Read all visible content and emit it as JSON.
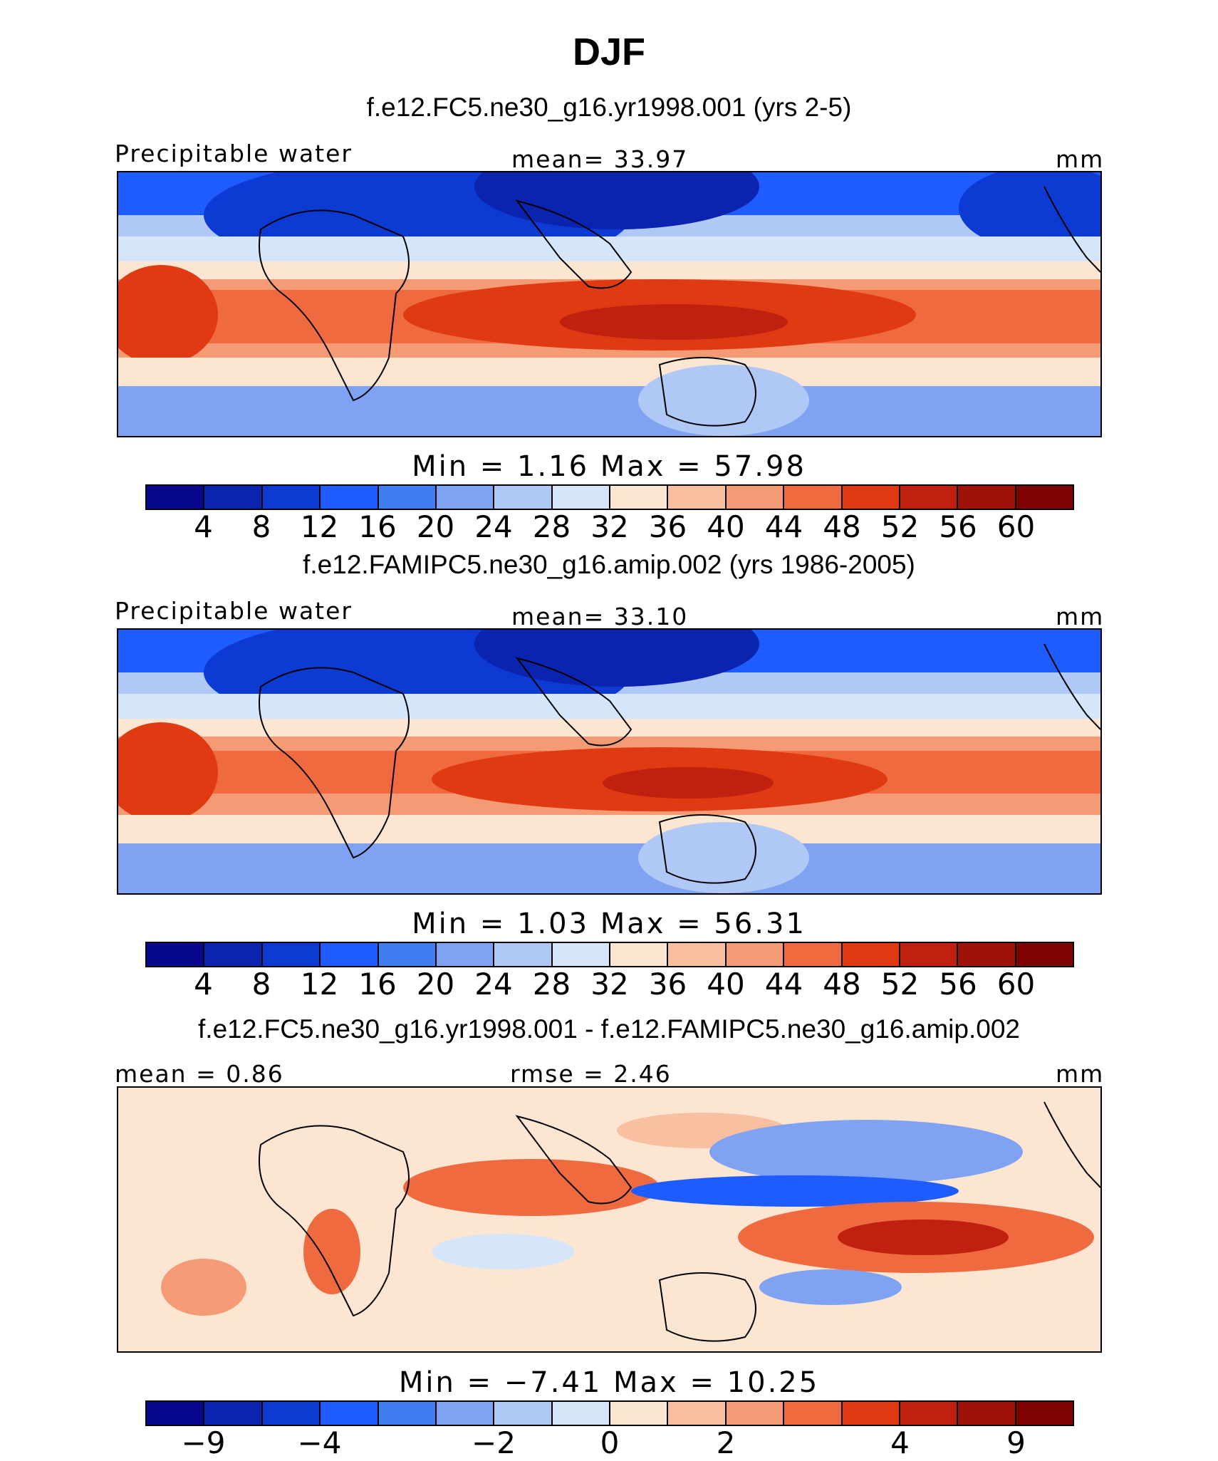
{
  "title": "DJF",
  "panels": [
    {
      "case": "f.e12.FC5.ne30_g16.yr1998.001 (yrs 2-5)",
      "left_label": "Precipitable water",
      "center_label": "mean=  33.97",
      "units": "mm",
      "stats": "Min =   1.16 Max =  57.98",
      "colorbar": {
        "colors": [
          "#08088c",
          "#0a24b0",
          "#0c3ad2",
          "#1f5cff",
          "#3f7ef0",
          "#7fa2f2",
          "#b0c8f5",
          "#d6e6fa",
          "#fce6d2",
          "#f8bfa0",
          "#f49a74",
          "#f06a40",
          "#e03a12",
          "#c02010",
          "#a01208",
          "#7e0404"
        ],
        "ticks": [
          "4",
          "8",
          "12",
          "16",
          "20",
          "24",
          "28",
          "32",
          "36",
          "40",
          "44",
          "48",
          "52",
          "56",
          "60"
        ]
      }
    },
    {
      "case": "f.e12.FAMIPC5.ne30_g16.amip.002 (yrs 1986-2005)",
      "left_label": "Precipitable water",
      "center_label": "mean=  33.10",
      "units": "mm",
      "stats": "Min =   1.03 Max =  56.31",
      "colorbar": {
        "colors": [
          "#08088c",
          "#0a24b0",
          "#0c3ad2",
          "#1f5cff",
          "#3f7ef0",
          "#7fa2f2",
          "#b0c8f5",
          "#d6e6fa",
          "#fce6d2",
          "#f8bfa0",
          "#f49a74",
          "#f06a40",
          "#e03a12",
          "#c02010",
          "#a01208",
          "#7e0404"
        ],
        "ticks": [
          "4",
          "8",
          "12",
          "16",
          "20",
          "24",
          "28",
          "32",
          "36",
          "40",
          "44",
          "48",
          "52",
          "56",
          "60"
        ]
      }
    },
    {
      "case": "f.e12.FC5.ne30_g16.yr1998.001 - f.e12.FAMIPC5.ne30_g16.amip.002",
      "left_label": "mean =  0.86",
      "center_label": "rmse =  2.46",
      "units": "mm",
      "stats": "Min =  −7.41 Max =  10.25",
      "colorbar": {
        "colors": [
          "#08088c",
          "#0a24b0",
          "#0c3ad2",
          "#1f5cff",
          "#3f7ef0",
          "#7fa2f2",
          "#b0c8f5",
          "#d6e6fa",
          "#fce6d2",
          "#f8bfa0",
          "#f49a74",
          "#f06a40",
          "#e03a12",
          "#c02010",
          "#a01208",
          "#7e0404"
        ],
        "ticks": [
          "−9",
          "−4",
          "−2",
          "0",
          "2",
          "4",
          "9"
        ]
      }
    }
  ],
  "chart_data": {
    "type": "heatmap",
    "title": "DJF",
    "variable": "Precipitable water",
    "units": "mm",
    "maps": [
      {
        "case": "f.e12.FC5.ne30_g16.yr1998.001 (yrs 2-5)",
        "mean": 33.97,
        "min": 1.16,
        "max": 57.98,
        "levels": [
          4,
          8,
          12,
          16,
          20,
          24,
          28,
          32,
          36,
          40,
          44,
          48,
          52,
          56,
          60
        ]
      },
      {
        "case": "f.e12.FAMIPC5.ne30_g16.amip.002 (yrs 1986-2005)",
        "mean": 33.1,
        "min": 1.03,
        "max": 56.31,
        "levels": [
          4,
          8,
          12,
          16,
          20,
          24,
          28,
          32,
          36,
          40,
          44,
          48,
          52,
          56,
          60
        ]
      },
      {
        "case": "f.e12.FC5.ne30_g16.yr1998.001 - f.e12.FAMIPC5.ne30_g16.amip.002",
        "mean": 0.86,
        "rmse": 2.46,
        "min": -7.41,
        "max": 10.25,
        "levels": [
          -9,
          -4,
          -2,
          0,
          2,
          4,
          9
        ]
      }
    ]
  }
}
